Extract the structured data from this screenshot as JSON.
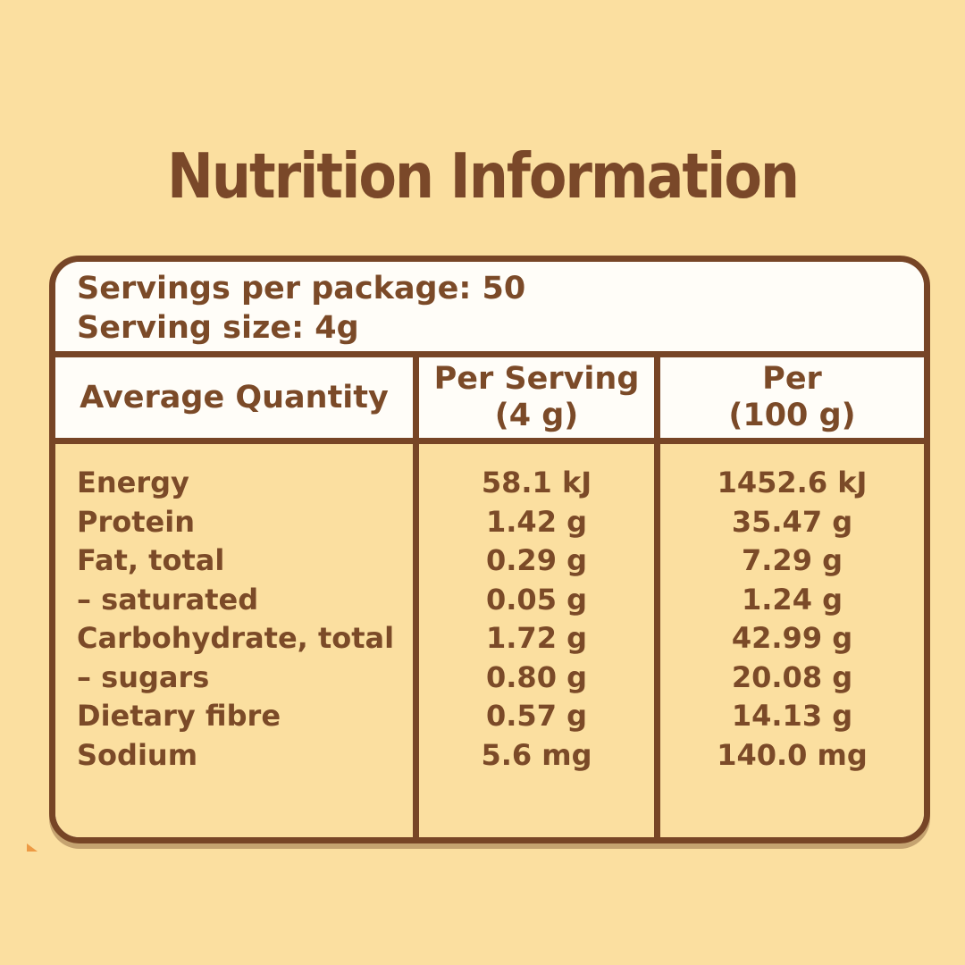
{
  "colors": {
    "background": "#FBDFA0",
    "panel_white": "#FFFDF8",
    "brown_border": "#774526",
    "brown_text": "#7B4A28",
    "artifact_orange": "#ED9A44"
  },
  "title": "Nutrition Information",
  "table": {
    "servings_per_package": "Servings per package: 50",
    "serving_size": "Serving size: 4g",
    "header": {
      "average_quantity": "Average Quantity",
      "per_serving_line1": "Per Serving",
      "per_serving_line2": "(4 g)",
      "per_100_line1": "Per",
      "per_100_line2": "(100 g)"
    },
    "rows": [
      {
        "label": "Energy",
        "per_serving": "58.1 kJ",
        "per_100g": "1452.6 kJ"
      },
      {
        "label": "Protein",
        "per_serving": "1.42 g",
        "per_100g": "35.47 g"
      },
      {
        "label": "Fat, total",
        "per_serving": "0.29 g",
        "per_100g": "7.29 g"
      },
      {
        "label": "– saturated",
        "per_serving": "0.05 g",
        "per_100g": "1.24 g"
      },
      {
        "label": "Carbohydrate, total",
        "per_serving": "1.72 g",
        "per_100g": "42.99 g"
      },
      {
        "label": "– sugars",
        "per_serving": "0.80 g",
        "per_100g": "20.08 g"
      },
      {
        "label": "Dietary fibre",
        "per_serving": "0.57 g",
        "per_100g": "14.13 g"
      },
      {
        "label": "Sodium",
        "per_serving": "5.6 mg",
        "per_100g": "140.0 mg"
      }
    ]
  }
}
